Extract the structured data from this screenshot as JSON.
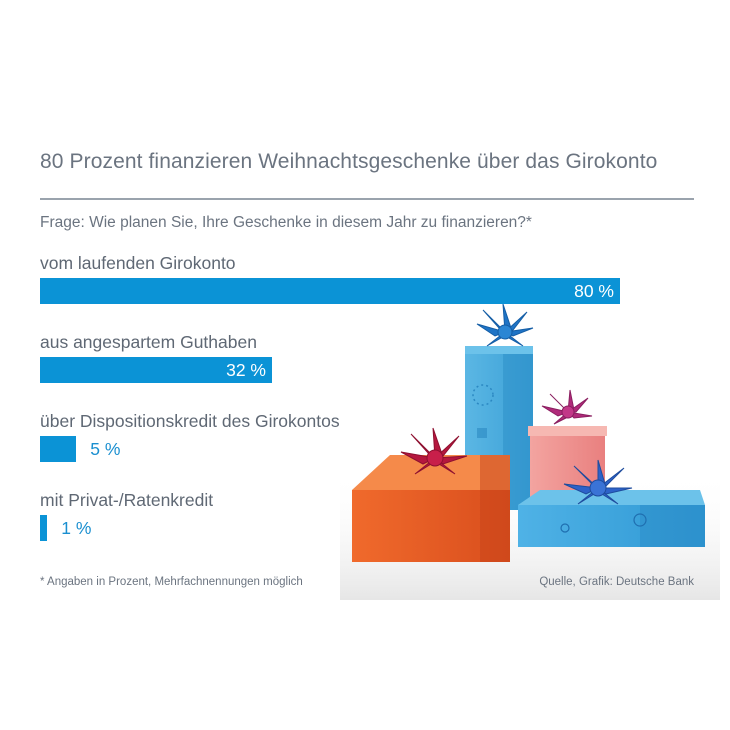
{
  "title": "80 Prozent finanzieren Weihnachtsgeschenke über das Girokonto",
  "question": "Frage: Wie planen Sie, Ihre Geschenke in diesem Jahr zu finanzieren?*",
  "footnote": "* Angaben in Prozent, Mehrfachnennungen möglich",
  "source": "Quelle, Grafik: Deutsche Bank",
  "colors": {
    "bar": "#0b93d6",
    "text": "#6b7480",
    "rule": "#9aa3ad"
  },
  "decoration": {
    "picture": "gift-boxes-illustration"
  },
  "chart_data": {
    "type": "bar",
    "orientation": "horizontal",
    "categories": [
      "vom laufenden Girokonto",
      "aus angespartem Guthaben",
      "über Dispositionskredit des Girokontos",
      "mit Privat-/Ratenkredit"
    ],
    "values": [
      80,
      32,
      5,
      1
    ],
    "value_labels": [
      "80 %",
      "32 %",
      "5 %",
      "1 %"
    ],
    "unit": "%",
    "xlim": [
      0,
      80
    ],
    "grid": false
  }
}
